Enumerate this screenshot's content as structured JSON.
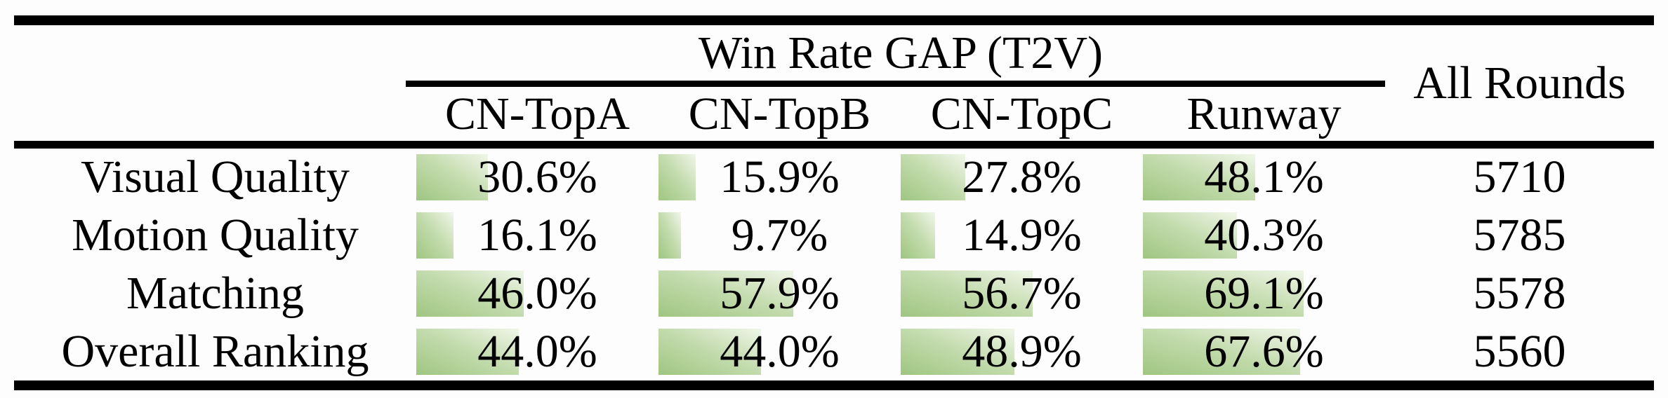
{
  "table": {
    "title": "Win Rate GAP (T2V)",
    "all_rounds_header": "All Rounds",
    "columns": [
      "CN-TopA",
      "CN-TopB",
      "CN-TopC",
      "Runway"
    ],
    "rows": [
      {
        "label": "Visual Quality",
        "values": [
          30.6,
          15.9,
          27.8,
          48.1
        ],
        "display": [
          "30.6%",
          "15.9%",
          "27.8%",
          "48.1%"
        ],
        "all_rounds": "5710"
      },
      {
        "label": "Motion Quality",
        "values": [
          16.1,
          9.7,
          14.9,
          40.3
        ],
        "display": [
          "16.1%",
          "9.7%",
          "14.9%",
          "40.3%"
        ],
        "all_rounds": "5785"
      },
      {
        "label": "Matching",
        "values": [
          46.0,
          57.9,
          56.7,
          69.1
        ],
        "display": [
          "46.0%",
          "57.9%",
          "56.7%",
          "69.1%"
        ],
        "all_rounds": "5578"
      },
      {
        "label": "Overall Ranking",
        "values": [
          44.0,
          44.0,
          48.9,
          67.6
        ],
        "display": [
          "44.0%",
          "44.0%",
          "48.9%",
          "67.6%"
        ],
        "all_rounds": "5560"
      }
    ],
    "colors": {
      "bar_green": "#9fc681",
      "bar_fade": "#f0f6e9",
      "rule_black": "#000000",
      "text": "#000000"
    }
  },
  "chart_data": {
    "type": "table",
    "title": "Win Rate GAP (T2V)",
    "columns": [
      "CN-TopA",
      "CN-TopB",
      "CN-TopC",
      "Runway",
      "All Rounds"
    ],
    "categories": [
      "Visual Quality",
      "Motion Quality",
      "Matching",
      "Overall Ranking"
    ],
    "series": [
      {
        "name": "CN-TopA",
        "values": [
          30.6,
          16.1,
          46.0,
          44.0
        ]
      },
      {
        "name": "CN-TopB",
        "values": [
          15.9,
          9.7,
          57.9,
          44.0
        ]
      },
      {
        "name": "CN-TopC",
        "values": [
          27.8,
          14.9,
          56.7,
          48.9
        ]
      },
      {
        "name": "Runway",
        "values": [
          48.1,
          40.3,
          69.1,
          67.6
        ]
      }
    ],
    "all_rounds": [
      5710,
      5785,
      5578,
      5560
    ],
    "value_unit": "percent",
    "bar_scale": "data bars proportional to percentage, 100% = full cell width",
    "layout": "booktabs table, thick top/bottom rules, partial rule under spanning title"
  }
}
